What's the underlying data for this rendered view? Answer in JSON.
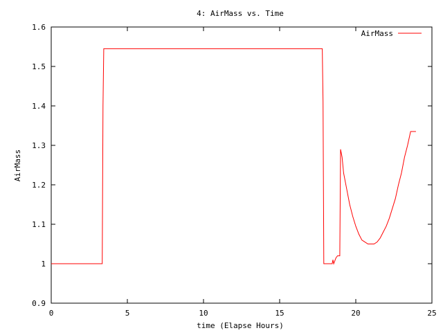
{
  "chart_data": {
    "type": "line",
    "title": "4: AirMass vs. Time",
    "xlabel": "time (Elapse Hours)",
    "ylabel": "AirMass",
    "xlim": [
      0,
      25
    ],
    "ylim": [
      0.9,
      1.6
    ],
    "xticks": [
      0,
      5,
      10,
      15,
      20,
      25
    ],
    "xtick_labels": [
      "0",
      "5",
      "10",
      "15",
      "20",
      "25"
    ],
    "yticks": [
      0.9,
      1,
      1.1,
      1.2,
      1.3,
      1.4,
      1.5,
      1.6
    ],
    "ytick_labels": [
      "0.9",
      "1",
      "1.1",
      "1.2",
      "1.3",
      "1.4",
      "1.5",
      "1.6"
    ],
    "grid": false,
    "legend_position": "top-right",
    "series": [
      {
        "name": "AirMass",
        "color": "#ff0000",
        "x": [
          0.0,
          3.35,
          3.4,
          3.45,
          17.8,
          17.85,
          17.9,
          18.0,
          18.2,
          18.4,
          18.45,
          18.5,
          18.55,
          18.6,
          18.65,
          18.7,
          18.8,
          18.95,
          19.0,
          19.1,
          19.2,
          19.4,
          19.6,
          19.8,
          20.0,
          20.2,
          20.4,
          20.6,
          20.8,
          21.0,
          21.2,
          21.4,
          21.6,
          21.8,
          22.0,
          22.2,
          22.4,
          22.6,
          22.8,
          23.0,
          23.2,
          23.4,
          23.6,
          23.8,
          23.95
        ],
        "y": [
          1.0,
          1.0,
          1.4,
          1.545,
          1.545,
          1.41,
          1.0,
          1.0,
          1.0,
          1.0,
          1.0,
          1.01,
          1.0,
          1.005,
          1.01,
          1.015,
          1.02,
          1.02,
          1.29,
          1.27,
          1.23,
          1.19,
          1.15,
          1.12,
          1.095,
          1.075,
          1.06,
          1.055,
          1.05,
          1.05,
          1.05,
          1.055,
          1.065,
          1.08,
          1.095,
          1.115,
          1.14,
          1.165,
          1.2,
          1.23,
          1.27,
          1.3,
          1.335,
          1.335,
          1.335
        ]
      }
    ]
  }
}
